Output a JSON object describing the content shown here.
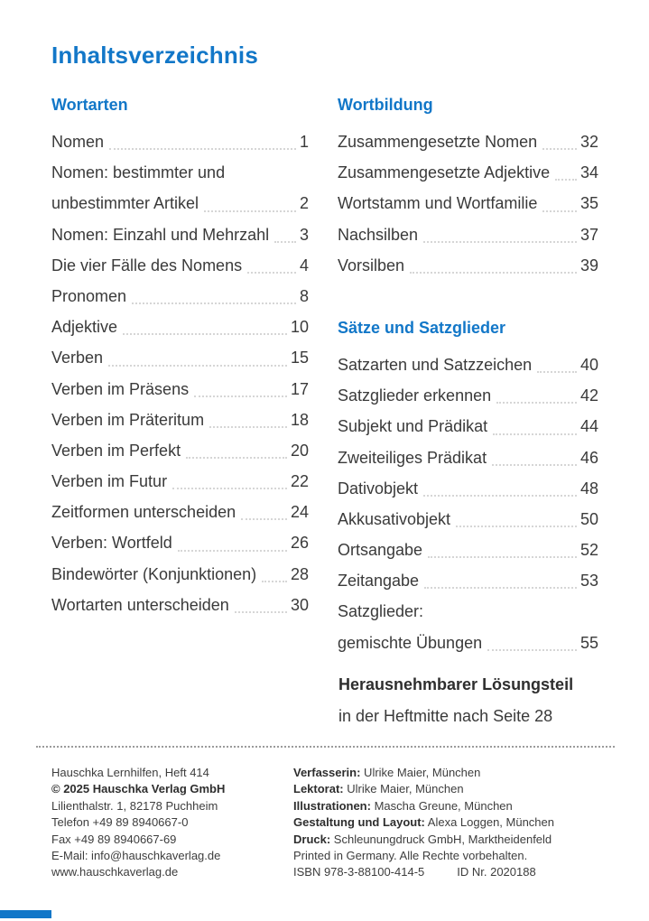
{
  "page": {
    "title": "Inhaltsverzeichnis",
    "accent_color": "#1277c8"
  },
  "toc": {
    "columns": [
      {
        "sections": [
          {
            "heading": "Wortarten",
            "entries": [
              {
                "lines": [
                  "Nomen"
                ],
                "page": "1"
              },
              {
                "lines": [
                  "Nomen: bestimmter und",
                  "unbestimmter Artikel"
                ],
                "page": "2"
              },
              {
                "lines": [
                  "Nomen: Einzahl und Mehrzahl"
                ],
                "page": "3"
              },
              {
                "lines": [
                  "Die vier Fälle des Nomens"
                ],
                "page": "4"
              },
              {
                "lines": [
                  "Pronomen"
                ],
                "page": "8"
              },
              {
                "lines": [
                  "Adjektive"
                ],
                "page": "10"
              },
              {
                "lines": [
                  "Verben"
                ],
                "page": "15"
              },
              {
                "lines": [
                  "Verben im Präsens"
                ],
                "page": "17"
              },
              {
                "lines": [
                  "Verben im Präteritum"
                ],
                "page": "18"
              },
              {
                "lines": [
                  "Verben im Perfekt"
                ],
                "page": "20"
              },
              {
                "lines": [
                  "Verben im Futur"
                ],
                "page": "22"
              },
              {
                "lines": [
                  "Zeitformen unterscheiden"
                ],
                "page": "24"
              },
              {
                "lines": [
                  "Verben: Wortfeld"
                ],
                "page": "26"
              },
              {
                "lines": [
                  "Bindewörter (Konjunktionen)"
                ],
                "page": "28"
              },
              {
                "lines": [
                  "Wortarten unterscheiden"
                ],
                "page": "30"
              }
            ]
          }
        ]
      },
      {
        "sections": [
          {
            "heading": "Wortbildung",
            "entries": [
              {
                "lines": [
                  "Zusammengesetzte Nomen"
                ],
                "page": "32"
              },
              {
                "lines": [
                  "Zusammengesetzte Adjektive"
                ],
                "page": "34"
              },
              {
                "lines": [
                  "Wortstamm und Wortfamilie"
                ],
                "page": "35"
              },
              {
                "lines": [
                  "Nachsilben"
                ],
                "page": "37"
              },
              {
                "lines": [
                  "Vorsilben"
                ],
                "page": "39"
              }
            ]
          },
          {
            "heading": "Sätze und Satzglieder",
            "entries": [
              {
                "lines": [
                  "Satzarten und Satzzeichen"
                ],
                "page": "40"
              },
              {
                "lines": [
                  "Satzglieder erkennen"
                ],
                "page": "42"
              },
              {
                "lines": [
                  "Subjekt und Prädikat"
                ],
                "page": "44"
              },
              {
                "lines": [
                  "Zweiteiliges Prädikat"
                ],
                "page": "46"
              },
              {
                "lines": [
                  "Dativobjekt"
                ],
                "page": "48"
              },
              {
                "lines": [
                  "Akkusativobjekt"
                ],
                "page": "50"
              },
              {
                "lines": [
                  "Ortsangabe"
                ],
                "page": "52"
              },
              {
                "lines": [
                  "Zeitangabe"
                ],
                "page": "53"
              },
              {
                "lines": [
                  "Satzglieder:",
                  "gemischte Übungen"
                ],
                "page": "55"
              }
            ]
          }
        ]
      }
    ]
  },
  "loesungsteil": {
    "title": "Herausnehmbarer Lösungsteil",
    "subtitle": "in der Heftmitte nach Seite 28"
  },
  "imprint": {
    "left_lines": [
      {
        "text": "Hauschka Lernhilfen, Heft 414"
      },
      {
        "text": "© 2025 Hauschka Verlag GmbH",
        "bold": true
      },
      {
        "text": "Lilienthalstr. 1, 82178 Puchheim"
      },
      {
        "text": "Telefon +49 89 8940667-0"
      },
      {
        "text": "Fax +49 89 8940667-69"
      },
      {
        "text": "E-Mail: info@hauschkaverlag.de"
      },
      {
        "text": "www.hauschkaverlag.de"
      }
    ],
    "right_lines": [
      {
        "label": "Verfasserin:",
        "text": " Ulrike Maier, München"
      },
      {
        "label": "Lektorat:",
        "text": " Ulrike Maier, München"
      },
      {
        "label": "Illustrationen:",
        "text": " Mascha Greune, München"
      },
      {
        "label": "Gestaltung und Layout:",
        "text": " Alexa Loggen, München"
      },
      {
        "label": "Druck:",
        "text": " Schleunungdruck GmbH, Marktheidenfeld"
      },
      {
        "text": "Printed in Germany. Alle Rechte vorbehalten."
      },
      {
        "parts": [
          "ISBN 978-3-88100-414-5",
          "ID Nr. 2020188"
        ]
      }
    ]
  }
}
